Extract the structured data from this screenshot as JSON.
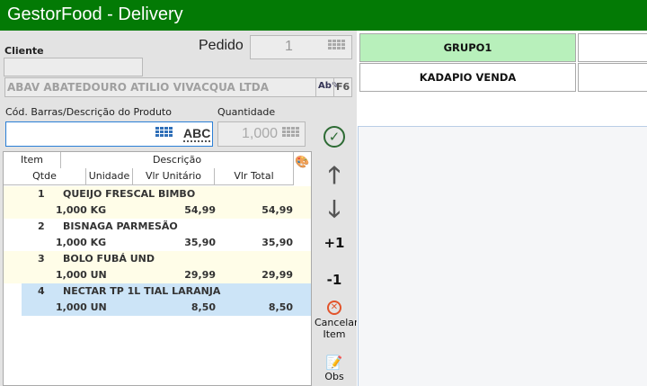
{
  "window": {
    "title": "GestorFood - Delivery"
  },
  "cliente": {
    "label": "Cliente",
    "code_value": "",
    "name_value": "ABAV ABATEDOURO ATILIO VIVACQUA LTDA",
    "f6_label": "F6"
  },
  "pedido": {
    "label": "Pedido",
    "value": "1"
  },
  "produto": {
    "label": "Cód. Barras/Descrição  do Produto",
    "value": "",
    "abc_label": "ABC"
  },
  "quantidade": {
    "label": "Quantidade",
    "value": "1,000"
  },
  "grid": {
    "headers": {
      "item": "Item",
      "descricao": "Descrição",
      "qtde": "Qtde",
      "unidade": "Unidade",
      "vlr_unitario": "Vlr Unitário",
      "vlr_total": "Vlr Total"
    },
    "rows": [
      {
        "item": "1",
        "descricao": "QUEIJO FRESCAL BIMBO",
        "qtde_un": "1,000 KG",
        "vlr_unitario": "54,99",
        "vlr_total": "54,99"
      },
      {
        "item": "2",
        "descricao": "BISNAGA PARMESÃO",
        "qtde_un": "1,000 KG",
        "vlr_unitario": "35,90",
        "vlr_total": "35,90"
      },
      {
        "item": "3",
        "descricao": "BOLO FUBÁ UND",
        "qtde_un": "1,000 UN",
        "vlr_unitario": "29,99",
        "vlr_total": "29,99"
      },
      {
        "item": "4",
        "descricao": "NECTAR TP 1L TIAL LARANJA",
        "qtde_un": "1,000 UN",
        "vlr_unitario": "8,50",
        "vlr_total": "8,50"
      }
    ],
    "selected_row": 4
  },
  "side": {
    "plus": "+1",
    "minus": "-1",
    "cancel": "Cancelar Item",
    "obs": "Obs"
  },
  "groups": [
    {
      "label": "GRUPO1",
      "selected": true
    },
    {
      "label": "KADAPIO VENDA",
      "selected": false
    }
  ],
  "colors": {
    "title_bg": "#037a05",
    "selected_group": "#b8f0bb",
    "row_alt": "#fffde8",
    "row_selected": "#cce4f7"
  }
}
